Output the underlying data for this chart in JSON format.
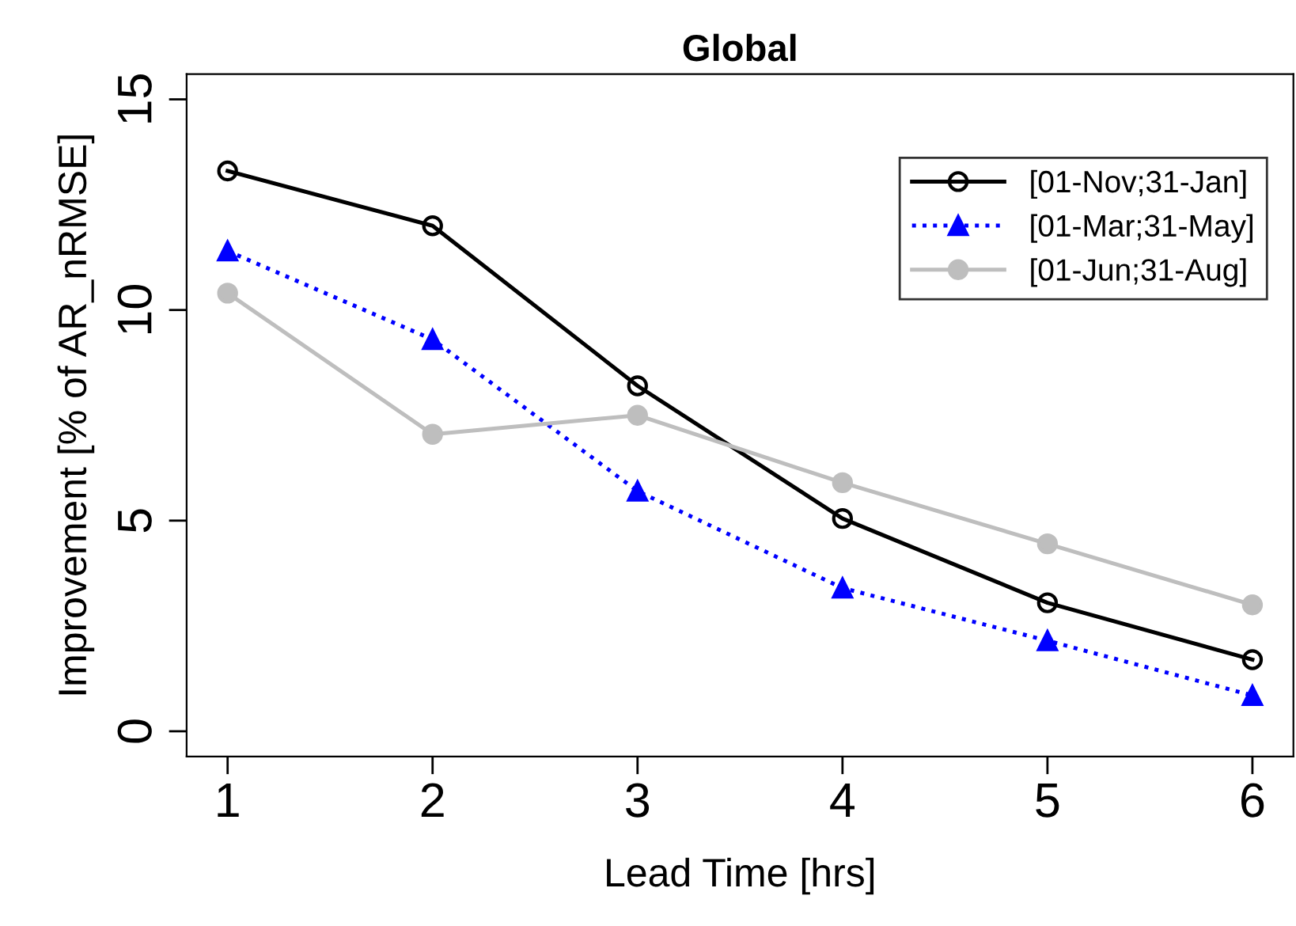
{
  "chart_data": {
    "type": "line",
    "title": "Global",
    "xlabel": "Lead Time [hrs]",
    "ylabel": "Improvement [% of AR_nRMSE]",
    "x": [
      1,
      2,
      3,
      4,
      5,
      6
    ],
    "series": [
      {
        "name": "[01-Nov;31-Jan]",
        "color": "#000000",
        "marker": "circle",
        "line_style": "solid",
        "values": [
          13.3,
          12.0,
          8.2,
          5.05,
          3.05,
          1.7
        ]
      },
      {
        "name": "[01-Mar;31-May]",
        "color": "#0000ff",
        "marker": "triangle",
        "line_style": "dotted",
        "values": [
          11.4,
          9.3,
          5.7,
          3.4,
          2.15,
          0.85
        ]
      },
      {
        "name": "[01-Jun;31-Aug]",
        "color": "#bebebe",
        "marker": "circle",
        "line_style": "solid",
        "values": [
          10.4,
          7.05,
          7.5,
          5.9,
          4.45,
          3.0
        ]
      }
    ],
    "xlim": [
      0.8,
      6.2
    ],
    "ylim": [
      -0.6,
      15.6
    ],
    "xticks": [
      1,
      2,
      3,
      4,
      5,
      6
    ],
    "yticks": [
      0,
      5,
      10,
      15
    ],
    "grid": false,
    "legend": "top right"
  }
}
